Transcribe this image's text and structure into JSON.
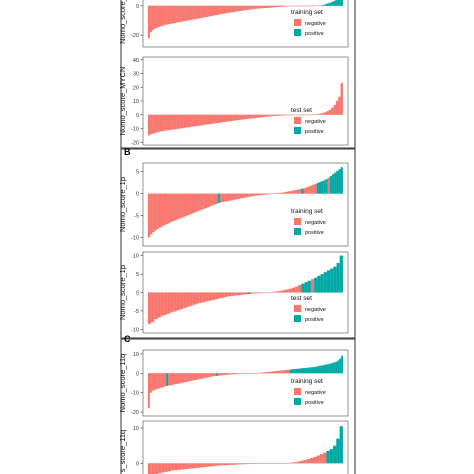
{
  "colors": {
    "negative": "#F8766D",
    "positive": "#00A9A5",
    "frame": "#666666",
    "section": "#444444"
  },
  "chart_data": [
    {
      "type": "bar",
      "section": "",
      "ylabel": "Nomo_score_",
      "ylim": [
        -28,
        8
      ],
      "yticks": [
        {
          "v": 0,
          "t": "0"
        },
        {
          "v": -20,
          "t": "-20"
        }
      ],
      "legend": {
        "title": "training set",
        "entries": [
          "negative",
          "positive"
        ],
        "position": "bottom-right"
      },
      "signs": "NNNNNNNNNNNNNNNNNNNNNNNNNNNNNNNNNNNNNNNNNNNNNNNNNNNNNNNNNNNNNNNNNNNNNNNNNNNNNNNNNNNNNNNNNNPPPPPPPPPPP",
      "values": [
        -22,
        -18,
        -16.5,
        -15.5,
        -15,
        -14.5,
        -14,
        -13.5,
        -13,
        -12.8,
        -12.5,
        -12.2,
        -12,
        -11.8,
        -11.5,
        -11.2,
        -11,
        -10.7,
        -10.5,
        -10.2,
        -10,
        -9.8,
        -9.5,
        -9.3,
        -9,
        -8.8,
        -8.5,
        -8.3,
        -8,
        -7.8,
        -7.5,
        -7.3,
        -7,
        -6.8,
        -6.5,
        -6.3,
        -6,
        -5.8,
        -5.5,
        -5.3,
        -5,
        -4.8,
        -4.6,
        -4.4,
        -4.2,
        -4,
        -3.8,
        -3.6,
        -3.4,
        -3.2,
        -3,
        -2.8,
        -2.6,
        -2.4,
        -2.2,
        -2,
        -1.9,
        -1.8,
        -1.7,
        -1.6,
        -1.5,
        -1.4,
        -1.3,
        -1.2,
        -1.1,
        -1,
        -0.9,
        -0.8,
        -0.7,
        -0.6,
        -0.5,
        -0.45,
        -0.4,
        -0.35,
        -0.3,
        -0.25,
        -0.2,
        -0.15,
        -0.1,
        -0.08,
        -0.06,
        -0.05,
        -0.04,
        -0.03,
        -0.02,
        -0.01,
        0.05,
        0.1,
        0.2,
        0.3,
        0.5,
        0.8,
        1.2,
        1.6,
        2,
        2.6,
        3.2,
        4,
        5,
        6.5,
        8
      ]
    },
    {
      "type": "bar",
      "section": "",
      "ylabel": "Nomo_score_MYCN",
      "ylim": [
        -22,
        42
      ],
      "yticks": [
        {
          "v": 40,
          "t": "40"
        },
        {
          "v": 30,
          "t": "30"
        },
        {
          "v": 20,
          "t": "20"
        },
        {
          "v": 10,
          "t": "10"
        },
        {
          "v": 0,
          "t": "0"
        },
        {
          "v": -10,
          "t": "-10"
        },
        {
          "v": -20,
          "t": "-20"
        }
      ],
      "legend": {
        "title": "test set",
        "entries": [
          "negative",
          "positive"
        ],
        "position": "bottom-right"
      },
      "signs": "NNNNNNNNNNNNNNNNNNNNNNNNNNNNNNNNNNNNNNNNNNNNNNNNNNNNNNNNNNNNNNNNNNNNNNNNNNNNNNNNNNNPPPPPP",
      "values": [
        -15,
        -14,
        -13.5,
        -13,
        -12.5,
        -12,
        -11.8,
        -11.5,
        -11.2,
        -11,
        -10.8,
        -10.5,
        -10.2,
        -10,
        -9.8,
        -9.5,
        -9.2,
        -9,
        -8.7,
        -8.5,
        -8.2,
        -8,
        -7.8,
        -7.5,
        -7.2,
        -7,
        -6.8,
        -6.5,
        -6.2,
        -6,
        -5.8,
        -5.5,
        -5.2,
        -5,
        -4.8,
        -4.5,
        -4.3,
        -4,
        -3.8,
        -3.6,
        -3.4,
        -3.2,
        -3,
        -2.8,
        -2.6,
        -2.4,
        -2.2,
        -2,
        -1.8,
        -1.6,
        -1.4,
        -1.2,
        -1,
        -0.9,
        -0.8,
        -0.7,
        -0.6,
        -0.5,
        -0.45,
        -0.4,
        -0.35,
        -0.3,
        -0.25,
        -0.2,
        -0.15,
        -0.1,
        -0.08,
        -0.06,
        -0.04,
        -0.02,
        0.1,
        0.3,
        0.5,
        0.8,
        1.2,
        1.8,
        2.6,
        3.5,
        5,
        7,
        10,
        13,
        23
      ]
    },
    {
      "type": "bar",
      "section": "B",
      "ylabel": "Nomo_score_1p",
      "ylim": [
        -12,
        7
      ],
      "yticks": [
        {
          "v": 5,
          "t": "5"
        },
        {
          "v": 0,
          "t": "0"
        },
        {
          "v": -5,
          "t": "-5"
        },
        {
          "v": -10,
          "t": "-10"
        }
      ],
      "legend": {
        "title": "training set",
        "entries": [
          "negative",
          "positive"
        ],
        "position": "bottom-right"
      },
      "signs": "NNNNNNNNNNNNNNNNNNNNNNNNNNNNNNNNPNNNNNNNNNNNNNNNNNNNNNNNNNNNNNNNNNNNNNPNNNNNNPPPPPNPPPPPPPPPP",
      "values": [
        -10,
        -9.3,
        -8.8,
        -8.4,
        -8.1,
        -7.8,
        -7.5,
        -7.2,
        -7,
        -6.8,
        -6.5,
        -6.3,
        -6.1,
        -5.9,
        -5.7,
        -5.5,
        -5.3,
        -5.1,
        -4.9,
        -4.7,
        -4.5,
        -4.3,
        -4.1,
        -3.9,
        -3.7,
        -3.5,
        -3.3,
        -3.1,
        -2.9,
        -2.7,
        -2.5,
        -2.3,
        -2.1,
        -2,
        -1.9,
        -1.8,
        -1.7,
        -1.6,
        -1.5,
        -1.4,
        -1.3,
        -1.2,
        -1.1,
        -1,
        -0.9,
        -0.8,
        -0.7,
        -0.6,
        -0.5,
        -0.45,
        -0.4,
        -0.35,
        -0.3,
        -0.25,
        -0.2,
        -0.15,
        -0.1,
        -0.05,
        0.05,
        0.1,
        0.15,
        0.2,
        0.3,
        0.4,
        0.5,
        0.6,
        0.7,
        0.8,
        0.9,
        1,
        1.1,
        1.2,
        1.4,
        1.6,
        1.8,
        2,
        2.2,
        2.4,
        2.6,
        2.8,
        3,
        3.3,
        3.6,
        4,
        4.4,
        4.8,
        5.2,
        5.6,
        6
      ]
    },
    {
      "type": "bar",
      "section": "",
      "ylabel": "Nomo_score_1p",
      "ylim": [
        -11,
        11
      ],
      "yticks": [
        {
          "v": 10,
          "t": "10"
        },
        {
          "v": 5,
          "t": "5"
        },
        {
          "v": 0,
          "t": "0"
        },
        {
          "v": -5,
          "t": "-5"
        },
        {
          "v": -10,
          "t": "-10"
        }
      ],
      "legend": {
        "title": "test set",
        "entries": [
          "negative",
          "positive"
        ],
        "position": "bottom-right"
      },
      "signs": "NNNNNNNNNNNNNNNNNNNNNNNNNNNNNNNPNNNNNNNNNNNNNNNNPPPNPPPPPPPPP",
      "values": [
        -8.5,
        -8,
        -7.2,
        -6.8,
        -6.3,
        -6,
        -5.7,
        -5.4,
        -5.1,
        -4.8,
        -4.5,
        -4.2,
        -3.9,
        -3.6,
        -3.3,
        -3,
        -2.8,
        -2.6,
        -2.4,
        -2.2,
        -2,
        -1.8,
        -1.6,
        -1.4,
        -1.2,
        -1,
        -0.9,
        -0.8,
        -0.7,
        -0.6,
        -0.5,
        -0.4,
        -0.3,
        -0.25,
        -0.2,
        -0.15,
        -0.1,
        -0.05,
        0.1,
        0.2,
        0.3,
        0.4,
        0.6,
        0.8,
        1,
        1.3,
        1.6,
        2,
        2.4,
        2.8,
        3.2,
        3.6,
        4,
        4.5,
        5,
        5.5,
        6,
        6.5,
        7,
        8,
        10
      ]
    },
    {
      "type": "bar",
      "section": "C",
      "ylabel": "Nomo_score_11q",
      "ylim": [
        -22,
        12
      ],
      "yticks": [
        {
          "v": 10,
          "t": "10"
        },
        {
          "v": 0,
          "t": "0"
        },
        {
          "v": -10,
          "t": "-10"
        },
        {
          "v": -20,
          "t": "-20"
        }
      ],
      "legend": {
        "title": "training set",
        "entries": [
          "negative",
          "positive"
        ],
        "position": "bottom-right"
      },
      "signs": "NNNNNNNNNNPNNNNNNNNNNNNNNNNNNNNNNNNNNPNNNNNNNNNNNNNNNNNNNNNNNNNNNNNNNNNNNNNNNPPPPPPPPPPPPPPPPPPPPPPPPPPPPPPPP",
      "values": [
        -18,
        -10,
        -9,
        -8.5,
        -8.2,
        -7.9,
        -7.6,
        -7.3,
        -7,
        -6.7,
        -6.5,
        -6.3,
        -6.1,
        -5.9,
        -5.7,
        -5.5,
        -5.3,
        -5.1,
        -4.9,
        -4.7,
        -4.5,
        -4.3,
        -4.1,
        -3.9,
        -3.7,
        -3.5,
        -3.3,
        -3.1,
        -2.9,
        -2.7,
        -2.5,
        -2.3,
        -2.1,
        -1.9,
        -1.7,
        -1.5,
        -1.4,
        -1.3,
        -1.2,
        -1.1,
        -1,
        -0.9,
        -0.8,
        -0.7,
        -0.6,
        -0.5,
        -0.45,
        -0.4,
        -0.35,
        -0.3,
        -0.25,
        -0.2,
        -0.15,
        -0.1,
        -0.08,
        -0.06,
        -0.04,
        -0.02,
        0.05,
        0.1,
        0.2,
        0.3,
        0.4,
        0.5,
        0.6,
        0.7,
        0.8,
        0.9,
        1,
        1.1,
        1.2,
        1.3,
        1.4,
        1.5,
        1.6,
        1.7,
        1.8,
        1.9,
        2,
        2.1,
        2.2,
        2.3,
        2.4,
        2.5,
        2.6,
        2.7,
        2.8,
        2.9,
        3,
        3.1,
        3.2,
        3.4,
        3.6,
        3.8,
        4,
        4.2,
        4.4,
        4.6,
        4.8,
        5,
        5.3,
        5.6,
        6,
        6.6,
        7.5,
        9
      ]
    },
    {
      "type": "bar",
      "section": "",
      "ylabel": "s_score_11q",
      "ylim": [
        -5,
        12
      ],
      "yticks": [
        {
          "v": 10,
          "t": "10"
        },
        {
          "v": 0,
          "t": "0"
        }
      ],
      "legend": null,
      "signs": "NNNNNNNNNNNNNNNNNNNNNNNNNNNNNNNNNNNNNNNNNNNNNNNNNNNNNNPPPPPPPPP",
      "values": [
        -3.5,
        -3.2,
        -3,
        -2.8,
        -2.6,
        -2.4,
        -2.2,
        -2,
        -1.9,
        -1.8,
        -1.7,
        -1.6,
        -1.5,
        -1.4,
        -1.3,
        -1.2,
        -1.1,
        -1,
        -0.9,
        -0.8,
        -0.7,
        -0.6,
        -0.55,
        -0.5,
        -0.45,
        -0.4,
        -0.35,
        -0.3,
        -0.25,
        -0.2,
        -0.18,
        -0.16,
        -0.14,
        -0.12,
        -0.1,
        -0.08,
        -0.06,
        -0.05,
        -0.04,
        -0.03,
        -0.02,
        -0.01,
        0.1,
        0.2,
        0.3,
        0.5,
        0.7,
        0.9,
        1.2,
        1.5,
        1.8,
        2.2,
        2.6,
        3,
        3.5,
        4,
        5,
        7,
        10.5
      ]
    }
  ]
}
